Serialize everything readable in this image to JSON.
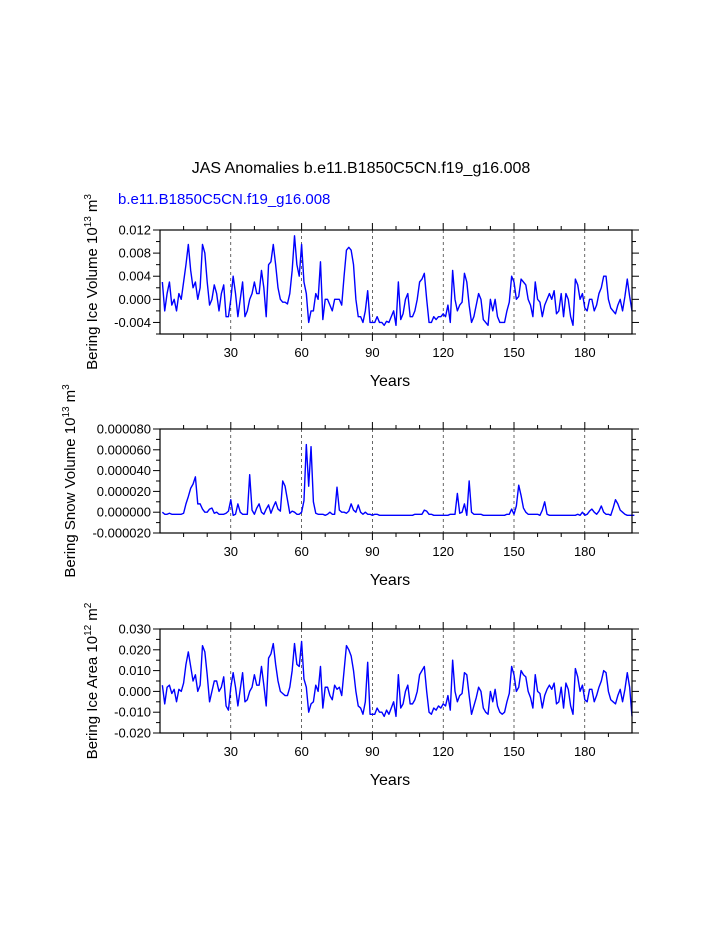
{
  "title": "JAS Anomalies b.e11.B1850C5CN.f19_g16.008",
  "case_label": "b.e11.B1850C5CN.f19_g16.008",
  "colors": {
    "series": "#0000ff",
    "case_label": "#0000ff",
    "axis": "#000000",
    "grid": "#000000"
  },
  "chart_data": [
    {
      "type": "line",
      "name": "panel-ice-volume",
      "ylabel_main": "Bering Ice Volume 10",
      "ylabel_exp": "13",
      "ylabel_unit": "m",
      "ylabel_unit_exp": "3",
      "xlabel": "Years",
      "xlim": [
        0,
        200
      ],
      "ylim": [
        -0.006,
        0.012
      ],
      "yticks": [
        -0.004,
        0.0,
        0.004,
        0.008,
        0.012
      ],
      "ytick_labels": [
        "-0.004",
        "0.000",
        "0.004",
        "0.008",
        "0.012"
      ],
      "xticks": [
        30,
        60,
        90,
        120,
        150,
        180
      ],
      "xtick_labels": [
        "30",
        "60",
        "90",
        "120",
        "150",
        "180"
      ],
      "gridlines_x": [
        30,
        60,
        90,
        120,
        150,
        180
      ],
      "values": [
        0.003,
        -0.002,
        0.001,
        0.003,
        -0.001,
        0.0,
        -0.002,
        0.001,
        0.0,
        0.003,
        0.006,
        0.0095,
        0.005,
        0.002,
        0.003,
        0.0,
        0.002,
        0.0095,
        0.008,
        0.003,
        -0.001,
        0.0,
        0.0025,
        0.001,
        -0.002,
        0.001,
        0.0025,
        -0.003,
        -0.003,
        0.0,
        0.004,
        0.001,
        -0.003,
        0.0,
        0.003,
        -0.003,
        -0.002,
        0.0,
        0.001,
        0.003,
        0.001,
        0.001,
        0.005,
        0.002,
        -0.003,
        0.006,
        0.0065,
        0.0095,
        0.006,
        0.002,
        0.0,
        -0.0005,
        -0.0005,
        -0.0008,
        0.001,
        0.005,
        0.011,
        0.006,
        0.004,
        0.0095,
        0.003,
        0.001,
        -0.004,
        -0.002,
        -0.002,
        0.001,
        0.0,
        0.0065,
        -0.0035,
        0.0,
        0.0,
        -0.001,
        -0.002,
        0.0,
        0.0,
        0.0,
        -0.001,
        0.004,
        0.0085,
        0.009,
        0.0085,
        0.006,
        0.0,
        -0.003,
        -0.003,
        -0.004,
        -0.002,
        0.0015,
        -0.004,
        -0.004,
        -0.004,
        -0.003,
        -0.004,
        -0.004,
        -0.0045,
        -0.0038,
        -0.004,
        -0.003,
        -0.002,
        -0.0045,
        0.003,
        -0.0035,
        -0.0025,
        0.0,
        0.001,
        -0.003,
        -0.003,
        -0.002,
        0.0,
        0.003,
        0.0035,
        0.0045,
        0.0,
        -0.004,
        -0.004,
        -0.003,
        -0.0035,
        -0.003,
        -0.003,
        -0.0025,
        -0.003,
        -0.001,
        -0.004,
        0.005,
        0.0,
        -0.002,
        -0.001,
        -0.0005,
        0.0045,
        0.003,
        -0.001,
        -0.004,
        -0.003,
        -0.001,
        0.001,
        0.0,
        -0.0035,
        -0.004,
        -0.0045,
        0.0,
        -0.002,
        0.0,
        -0.003,
        -0.004,
        -0.004,
        -0.004,
        -0.002,
        -0.0005,
        0.004,
        0.003,
        0.0,
        0.0005,
        0.0035,
        0.003,
        0.0025,
        0.0,
        -0.001,
        -0.003,
        0.003,
        0.0,
        -0.0005,
        -0.003,
        -0.001,
        0.0,
        0.001,
        0.0,
        0.0015,
        -0.0025,
        -0.002,
        0.001,
        -0.003,
        0.001,
        0.0,
        -0.003,
        -0.0045,
        0.0035,
        0.0025,
        0.0,
        0.001,
        -0.0015,
        -0.002,
        0.0,
        0.0,
        -0.002,
        -0.001,
        0.001,
        0.002,
        0.004,
        0.004,
        0.0,
        -0.0015,
        -0.002,
        -0.0025,
        -0.001,
        0.0,
        -0.002,
        0.0005,
        0.0035,
        0.0005,
        -0.002
      ]
    },
    {
      "type": "line",
      "name": "panel-snow-volume",
      "ylabel_main": "Bering Snow Volume 10",
      "ylabel_exp": "13",
      "ylabel_unit": "m",
      "ylabel_unit_exp": "3",
      "xlabel": "Years",
      "xlim": [
        0,
        200
      ],
      "ylim": [
        -2e-05,
        8e-05
      ],
      "yticks": [
        -2e-05,
        0.0,
        2e-05,
        4e-05,
        6e-05,
        8e-05
      ],
      "ytick_labels": [
        "-0.000020",
        "0.000000",
        "0.000020",
        "0.000040",
        "0.000060",
        "0.000080"
      ],
      "xticks": [
        30,
        60,
        90,
        120,
        150,
        180
      ],
      "xtick_labels": [
        "30",
        "60",
        "90",
        "120",
        "150",
        "180"
      ],
      "gridlines_x": [
        30,
        60,
        90,
        120,
        150,
        180
      ],
      "values": [
        0.0,
        -2e-06,
        -2e-06,
        -1e-06,
        -2e-06,
        -2e-06,
        -2e-06,
        -2e-06,
        -2e-06,
        -1e-06,
        8e-06,
        1.5e-05,
        2.3e-05,
        2.7e-05,
        3.4e-05,
        8e-06,
        8e-06,
        3e-06,
        0.0,
        0.0,
        3e-06,
        4e-06,
        -1e-06,
        0.0,
        -2e-06,
        -2e-06,
        -2e-06,
        -1e-06,
        1e-06,
        1.2e-05,
        -3e-06,
        -2e-06,
        8e-06,
        0.0,
        -2e-06,
        -2e-06,
        -2e-06,
        3.6e-05,
        2e-06,
        -2e-06,
        4e-06,
        8e-06,
        0.0,
        -2e-06,
        3e-06,
        7e-06,
        -1e-06,
        5e-06,
        1e-05,
        3e-06,
        1e-06,
        3e-05,
        2.5e-05,
        1.2e-05,
        -1e-06,
        1e-06,
        0.0,
        -2e-06,
        -2e-06,
        0.0,
        1.1e-05,
        6.5e-05,
        2.5e-05,
        6.3e-05,
        1e-05,
        -1e-06,
        -2e-06,
        -2e-06,
        -2e-06,
        -3e-06,
        -2e-06,
        0.0,
        -2e-06,
        -2e-06,
        2.4e-05,
        2e-06,
        0.0,
        0.0,
        -1e-06,
        1e-06,
        8e-06,
        2e-06,
        0.0,
        7e-06,
        0.0,
        -2e-06,
        0.0,
        -2e-06,
        -2e-06,
        -3e-06,
        -2e-06,
        -2e-06,
        -3e-06,
        -3e-06,
        -3e-06,
        -3e-06,
        -3e-06,
        -3e-06,
        -3e-06,
        -3e-06,
        -3e-06,
        -3e-06,
        -3e-06,
        -3e-06,
        -3e-06,
        -3e-06,
        -3e-06,
        -2e-06,
        -2e-06,
        -2e-06,
        -2e-06,
        2e-06,
        1e-06,
        -2e-06,
        -2e-06,
        -3e-06,
        -3e-06,
        -3e-06,
        -3e-06,
        -3e-06,
        -3e-06,
        -3e-06,
        -2e-06,
        -2e-06,
        -2e-06,
        1.8e-05,
        -1e-06,
        0.0,
        8e-06,
        -3e-06,
        3e-05,
        0.0,
        -2e-06,
        -2e-06,
        -2e-06,
        -2e-06,
        -3e-06,
        -3e-06,
        -3e-06,
        -3e-06,
        -3e-06,
        -3e-06,
        -3e-06,
        -3e-06,
        -3e-06,
        -3e-06,
        -2e-06,
        -2e-06,
        3e-06,
        -2e-06,
        6e-06,
        2.6e-05,
        1.6e-05,
        4e-06,
        0.0,
        -2e-06,
        -2e-06,
        -2e-06,
        -2e-06,
        -2e-06,
        -3e-06,
        2e-06,
        1e-05,
        -2e-06,
        -3e-06,
        -3e-06,
        -3e-06,
        -3e-06,
        -3e-06,
        -3e-06,
        -3e-06,
        -3e-06,
        -3e-06,
        -3e-06,
        -3e-06,
        -3e-06,
        -2e-06,
        -3e-06,
        0.0,
        -3e-06,
        -2e-06,
        1e-06,
        3e-06,
        0.0,
        -2e-06,
        1e-06,
        6e-06,
        0.0,
        -2e-06,
        -2e-06,
        -3e-06,
        4e-06,
        1.2e-05,
        8e-06,
        2e-06,
        0.0,
        -2e-06,
        -3e-06,
        -3e-06,
        -3e-06,
        -3e-06
      ]
    },
    {
      "type": "line",
      "name": "panel-ice-area",
      "ylabel_main": "Bering Ice Area 10",
      "ylabel_exp": "12",
      "ylabel_unit": "m",
      "ylabel_unit_exp": "2",
      "xlabel": "Years",
      "xlim": [
        0,
        200
      ],
      "ylim": [
        -0.02,
        0.03
      ],
      "yticks": [
        -0.02,
        -0.01,
        0.0,
        0.01,
        0.02,
        0.03
      ],
      "ytick_labels": [
        "-0.020",
        "-0.010",
        "0.000",
        "0.010",
        "0.020",
        "0.030"
      ],
      "xticks": [
        30,
        60,
        90,
        120,
        150,
        180
      ],
      "xtick_labels": [
        "30",
        "60",
        "90",
        "120",
        "150",
        "180"
      ],
      "gridlines_x": [
        30,
        60,
        90,
        120,
        150,
        180
      ],
      "values": [
        0.003,
        -0.006,
        0.002,
        0.003,
        -0.001,
        0.001,
        -0.005,
        0.001,
        0.0,
        0.004,
        0.013,
        0.019,
        0.012,
        0.005,
        0.008,
        0.0,
        0.003,
        0.022,
        0.019,
        0.008,
        -0.005,
        0.0,
        0.005,
        0.005,
        0.0,
        0.002,
        0.007,
        -0.007,
        -0.009,
        0.002,
        0.009,
        0.002,
        -0.007,
        0.001,
        0.009,
        -0.005,
        -0.004,
        0.0,
        0.002,
        0.008,
        0.003,
        0.003,
        0.012,
        0.003,
        -0.007,
        0.016,
        0.018,
        0.023,
        0.013,
        0.005,
        0.0,
        -0.001,
        -0.002,
        -0.002,
        0.002,
        0.01,
        0.023,
        0.013,
        0.012,
        0.024,
        0.006,
        0.002,
        -0.01,
        -0.006,
        -0.005,
        0.003,
        0.0,
        0.012,
        -0.008,
        0.002,
        0.002,
        -0.002,
        -0.004,
        0.003,
        0.001,
        0.002,
        -0.002,
        0.01,
        0.022,
        0.02,
        0.017,
        0.01,
        0.0,
        -0.007,
        -0.008,
        -0.011,
        -0.005,
        0.014,
        -0.011,
        -0.011,
        -0.011,
        -0.008,
        -0.01,
        -0.01,
        -0.012,
        -0.009,
        -0.011,
        -0.008,
        -0.005,
        -0.012,
        0.008,
        -0.008,
        -0.006,
        0.0,
        0.003,
        -0.006,
        -0.006,
        -0.004,
        0.0,
        0.008,
        0.01,
        0.012,
        0.0,
        -0.01,
        -0.011,
        -0.008,
        -0.009,
        -0.007,
        -0.008,
        -0.006,
        -0.007,
        -0.002,
        -0.009,
        0.015,
        0.0,
        -0.005,
        -0.002,
        -0.001,
        0.009,
        0.008,
        -0.002,
        -0.011,
        -0.007,
        -0.003,
        0.002,
        0.0,
        -0.008,
        -0.01,
        -0.011,
        0.0,
        -0.005,
        0.001,
        -0.007,
        -0.01,
        -0.011,
        -0.01,
        -0.005,
        -0.001,
        0.012,
        0.008,
        0.0,
        0.002,
        0.01,
        0.008,
        0.007,
        0.0,
        -0.003,
        -0.008,
        0.008,
        0.0,
        -0.001,
        -0.008,
        -0.002,
        0.001,
        0.003,
        0.001,
        0.004,
        -0.006,
        -0.005,
        0.002,
        -0.008,
        0.004,
        0.001,
        -0.007,
        -0.011,
        0.011,
        0.007,
        0.0,
        0.003,
        -0.004,
        -0.005,
        0.001,
        0.001,
        -0.005,
        -0.002,
        0.002,
        0.005,
        0.01,
        0.009,
        0.0,
        -0.004,
        -0.005,
        -0.006,
        -0.002,
        0.001,
        -0.005,
        0.001,
        0.009,
        0.002,
        -0.012
      ]
    }
  ]
}
